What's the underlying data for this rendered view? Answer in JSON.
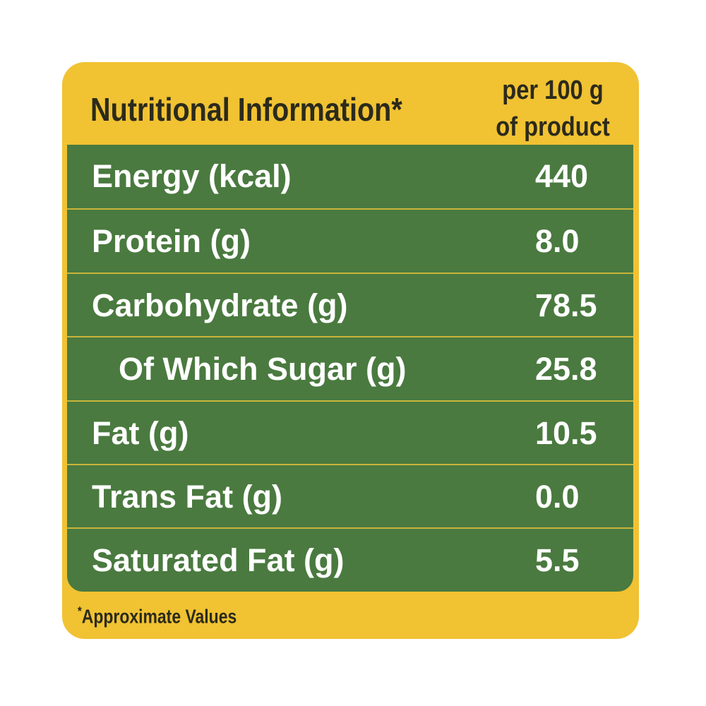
{
  "header": {
    "title": "Nutritional Information*",
    "column_heading": [
      "per 100 g",
      "of product"
    ]
  },
  "table": {
    "rows": [
      {
        "label": "Energy (kcal)",
        "value": "440",
        "indent": false
      },
      {
        "label": "Protein (g)",
        "value": "8.0",
        "indent": false
      },
      {
        "label": "Carbohydrate (g)",
        "value": "78.5",
        "indent": false
      },
      {
        "label": "Of Which Sugar (g)",
        "value": "25.8",
        "indent": true
      },
      {
        "label": "Fat (g)",
        "value": "10.5",
        "indent": false
      },
      {
        "label": "Trans Fat (g)",
        "value": "0.0",
        "indent": false
      },
      {
        "label": "Saturated Fat (g)",
        "value": "5.5",
        "indent": false
      }
    ]
  },
  "footnote": {
    "marker": "*",
    "text": "Approximate Values"
  }
}
